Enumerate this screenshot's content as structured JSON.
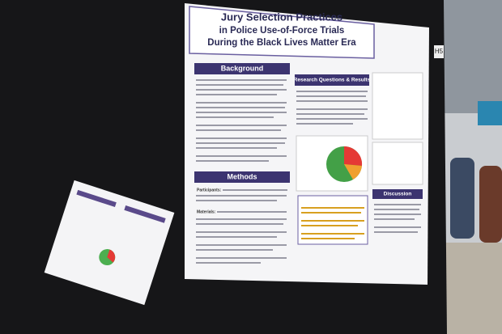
{
  "poster": {
    "board_label": "H5",
    "title": [
      "Jury Selection Practices",
      "in Police Use-of-Force Trials",
      "During the Black Lives Matter Era"
    ],
    "sections": {
      "background": "Background",
      "methods": "Methods",
      "results": "Research Questions & Results",
      "discussion": "Discussion"
    },
    "methods_items": [
      "Participants:",
      "Materials:"
    ]
  }
}
